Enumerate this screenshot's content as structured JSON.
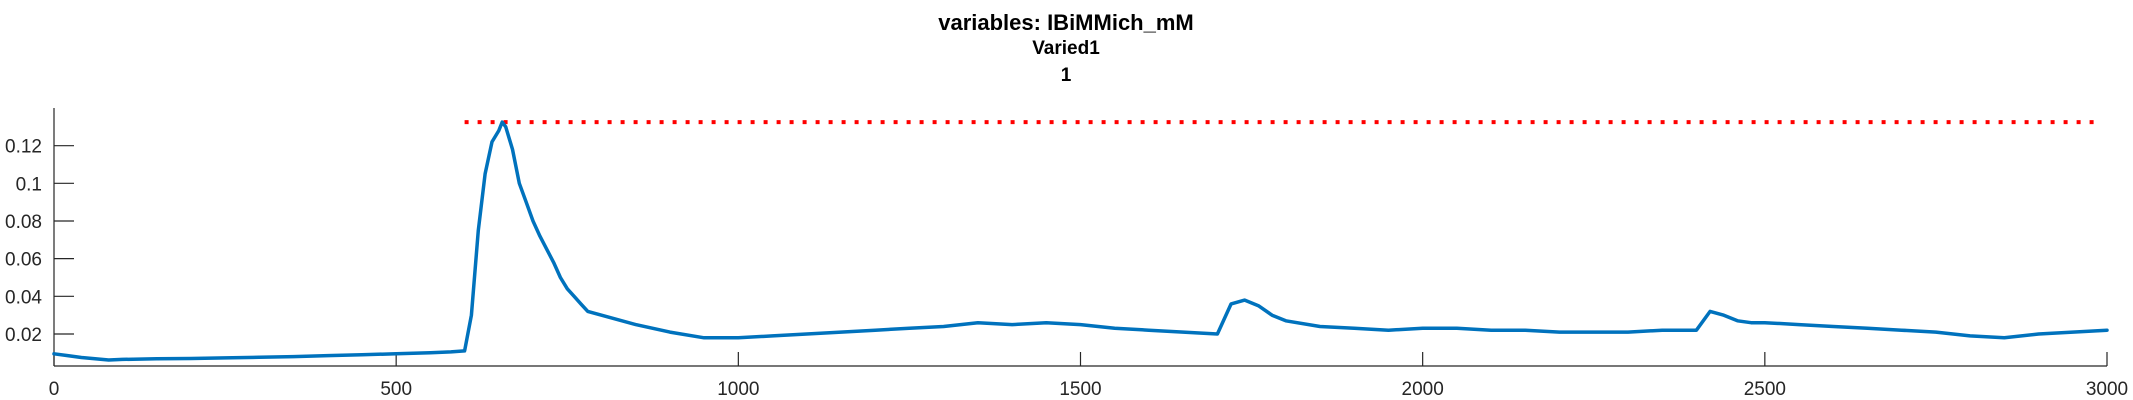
{
  "chart_data": {
    "type": "line",
    "title": "variables: IBiMMich_mM",
    "subtitle_lines": [
      "Varied1",
      "1"
    ],
    "xlabel": "",
    "ylabel": "",
    "xlim": [
      0,
      3000
    ],
    "ylim": [
      0.003,
      0.14
    ],
    "x_ticks": [
      0,
      500,
      1000,
      1500,
      2000,
      2500,
      3000
    ],
    "x_tick_labels": [
      "0",
      "500",
      "1000",
      "1500",
      "2000",
      "2500",
      "3000"
    ],
    "y_ticks": [
      0.02,
      0.04,
      0.06,
      0.08,
      0.1,
      0.12
    ],
    "y_tick_labels": [
      "0.02",
      "0.04",
      "0.06",
      "0.08",
      "0.1",
      "0.12"
    ],
    "grid": false,
    "series_color": "#0072BD",
    "threshold": {
      "value": 0.1325,
      "x_start": 600,
      "x_end": 2985,
      "color": "#FF0000",
      "style": "dotted"
    },
    "series": [
      {
        "x": [
          0,
          20,
          40,
          60,
          80,
          100,
          150,
          200,
          250,
          300,
          350,
          400,
          450,
          500,
          550,
          580,
          600,
          610,
          620,
          630,
          640,
          650,
          655,
          660,
          670,
          680,
          690,
          700,
          710,
          720,
          730,
          740,
          750,
          760,
          770,
          780,
          800,
          850,
          900,
          950,
          1000,
          1050,
          1100,
          1150,
          1200,
          1250,
          1300,
          1350,
          1400,
          1450,
          1500,
          1550,
          1600,
          1650,
          1700,
          1720,
          1740,
          1760,
          1780,
          1800,
          1850,
          1900,
          1950,
          2000,
          2050,
          2100,
          2150,
          2200,
          2250,
          2300,
          2350,
          2400,
          2420,
          2440,
          2460,
          2480,
          2500,
          2550,
          2600,
          2650,
          2700,
          2750,
          2800,
          2850,
          2900,
          2950,
          3000
        ],
        "y": [
          0.0095,
          0.0085,
          0.0075,
          0.0068,
          0.0062,
          0.0065,
          0.0068,
          0.007,
          0.0073,
          0.0076,
          0.008,
          0.0085,
          0.009,
          0.0095,
          0.01,
          0.0105,
          0.011,
          0.03,
          0.075,
          0.105,
          0.122,
          0.128,
          0.1325,
          0.13,
          0.118,
          0.1,
          0.09,
          0.08,
          0.072,
          0.065,
          0.058,
          0.05,
          0.044,
          0.04,
          0.036,
          0.032,
          0.03,
          0.025,
          0.021,
          0.018,
          0.018,
          0.019,
          0.02,
          0.021,
          0.022,
          0.023,
          0.024,
          0.026,
          0.025,
          0.026,
          0.025,
          0.023,
          0.022,
          0.021,
          0.02,
          0.036,
          0.038,
          0.035,
          0.03,
          0.027,
          0.024,
          0.023,
          0.022,
          0.023,
          0.023,
          0.022,
          0.022,
          0.021,
          0.021,
          0.021,
          0.022,
          0.022,
          0.032,
          0.03,
          0.027,
          0.026,
          0.026,
          0.025,
          0.024,
          0.023,
          0.022,
          0.021,
          0.019,
          0.018,
          0.02,
          0.021,
          0.022
        ]
      }
    ]
  }
}
